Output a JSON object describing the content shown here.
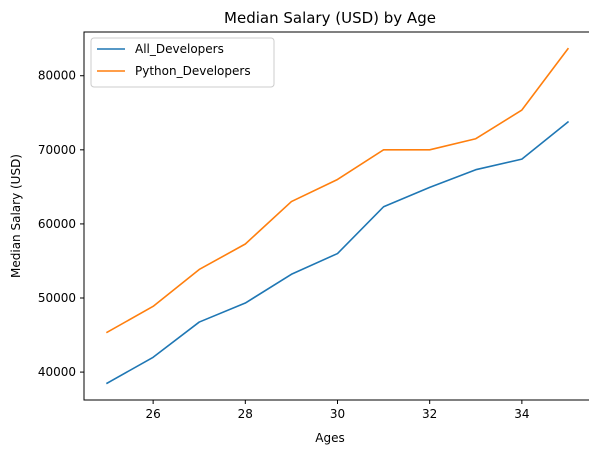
{
  "chart_data": {
    "type": "line",
    "title": "Median Salary (USD) by Age",
    "xlabel": "Ages",
    "ylabel": "Median Salary (USD)",
    "x": [
      25,
      26,
      27,
      28,
      29,
      30,
      31,
      32,
      33,
      34,
      35
    ],
    "series": [
      {
        "name": "All_Developers",
        "color": "#1f77b4",
        "values": [
          38496,
          42000,
          46752,
          49320,
          53200,
          56000,
          62316,
          64928,
          67317,
          68748,
          73752
        ]
      },
      {
        "name": "Python_Developers",
        "color": "#ff7f0e",
        "values": [
          45372,
          48876,
          53850,
          57287,
          63016,
          65998,
          70003,
          70000,
          71496,
          75370,
          83640
        ]
      }
    ],
    "xlim": [
      24.5,
      35.5
    ],
    "ylim": [
      36233,
      85903
    ],
    "xticks": [
      26,
      28,
      30,
      32,
      34
    ],
    "yticks": [
      40000,
      50000,
      60000,
      70000,
      80000
    ],
    "grid": false,
    "legend_position": "top-left"
  }
}
